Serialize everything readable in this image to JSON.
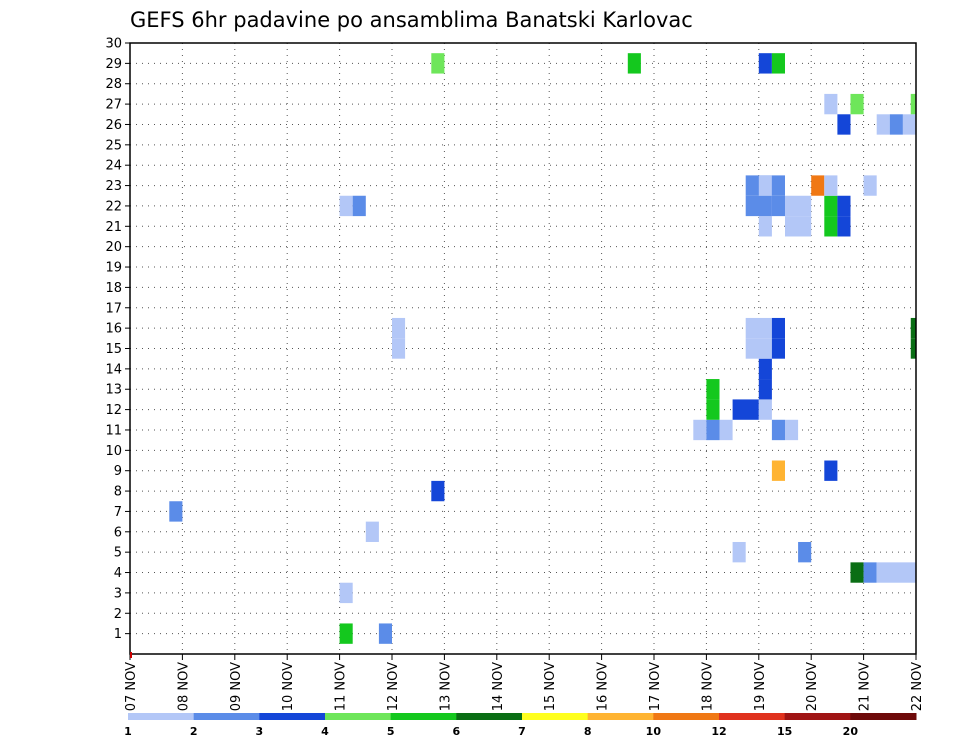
{
  "chart_data": {
    "type": "heatmap",
    "title": "GEFS 6hr padavine po ansamblima Banatski Karlovac",
    "x_tick_labels": [
      "07 NOV",
      "08 NOV",
      "09 NOV",
      "10 NOV",
      "11 NOV",
      "12 NOV",
      "13 NOV",
      "14 NOV",
      "15 NOV",
      "16 NOV",
      "17 NOV",
      "18 NOV",
      "19 NOV",
      "20 NOV",
      "21 NOV",
      "22 NOV"
    ],
    "x_range_days": [
      0,
      15
    ],
    "y_tick_labels": [
      "1",
      "2",
      "3",
      "4",
      "5",
      "6",
      "7",
      "8",
      "9",
      "10",
      "11",
      "12",
      "13",
      "14",
      "15",
      "16",
      "17",
      "18",
      "19",
      "20",
      "21",
      "22",
      "23",
      "24",
      "25",
      "26",
      "27",
      "28",
      "29",
      "30"
    ],
    "y_range": [
      0,
      30
    ],
    "grid": true,
    "legend_placement": "bottom",
    "colorbar": {
      "labels": [
        "1",
        "2",
        "3",
        "4",
        "5",
        "6",
        "7",
        "8",
        "10",
        "12",
        "15",
        "20"
      ],
      "colors": [
        "#b3c7f7",
        "#5b8ce8",
        "#1446d8",
        "#6ee65a",
        "#14c81e",
        "#0a6e14",
        "#ffff1e",
        "#ffb432",
        "#f07814",
        "#e0321e",
        "#a01414",
        "#6e0a0a"
      ]
    },
    "cells": [
      {
        "member": 1,
        "day": 4.0,
        "len": 0.25,
        "color": "#14c81e"
      },
      {
        "member": 1,
        "day": 4.75,
        "len": 0.25,
        "color": "#5b8ce8"
      },
      {
        "member": 3,
        "day": 4.0,
        "len": 0.25,
        "color": "#b3c7f7"
      },
      {
        "member": 4,
        "day": 13.75,
        "len": 0.25,
        "color": "#0a6e14"
      },
      {
        "member": 4,
        "day": 14.0,
        "len": 0.25,
        "color": "#5b8ce8"
      },
      {
        "member": 4,
        "day": 14.25,
        "len": 0.75,
        "color": "#b3c7f7"
      },
      {
        "member": 5,
        "day": 11.5,
        "len": 0.25,
        "color": "#b3c7f7"
      },
      {
        "member": 5,
        "day": 12.75,
        "len": 0.25,
        "color": "#5b8ce8"
      },
      {
        "member": 6,
        "day": 4.5,
        "len": 0.25,
        "color": "#b3c7f7"
      },
      {
        "member": 7,
        "day": 0.75,
        "len": 0.25,
        "color": "#5b8ce8"
      },
      {
        "member": 8,
        "day": 5.75,
        "len": 0.25,
        "color": "#1446d8"
      },
      {
        "member": 9,
        "day": 12.25,
        "len": 0.25,
        "color": "#ffb432"
      },
      {
        "member": 9,
        "day": 13.25,
        "len": 0.25,
        "color": "#1446d8"
      },
      {
        "member": 11,
        "day": 10.75,
        "len": 0.25,
        "color": "#b3c7f7"
      },
      {
        "member": 11,
        "day": 11.0,
        "len": 0.25,
        "color": "#5b8ce8"
      },
      {
        "member": 11,
        "day": 11.25,
        "len": 0.25,
        "color": "#b3c7f7"
      },
      {
        "member": 11,
        "day": 12.25,
        "len": 0.25,
        "color": "#5b8ce8"
      },
      {
        "member": 11,
        "day": 12.5,
        "len": 0.25,
        "color": "#b3c7f7"
      },
      {
        "member": 12,
        "day": 11.0,
        "len": 0.25,
        "color": "#14c81e"
      },
      {
        "member": 12,
        "day": 11.5,
        "len": 0.5,
        "color": "#1446d8"
      },
      {
        "member": 12,
        "day": 12.0,
        "len": 0.25,
        "color": "#b3c7f7"
      },
      {
        "member": 13,
        "day": 11.0,
        "len": 0.25,
        "color": "#14c81e"
      },
      {
        "member": 13,
        "day": 12.0,
        "len": 0.25,
        "color": "#1446d8"
      },
      {
        "member": 14,
        "day": 12.0,
        "len": 0.25,
        "color": "#1446d8"
      },
      {
        "member": 15,
        "day": 5.0,
        "len": 0.25,
        "color": "#b3c7f7"
      },
      {
        "member": 15,
        "day": 11.75,
        "len": 0.5,
        "color": "#b3c7f7"
      },
      {
        "member": 15,
        "day": 12.25,
        "len": 0.25,
        "color": "#1446d8"
      },
      {
        "member": 15,
        "day": 14.9,
        "len": 0.1,
        "color": "#0a6e14"
      },
      {
        "member": 16,
        "day": 5.0,
        "len": 0.25,
        "color": "#b3c7f7"
      },
      {
        "member": 16,
        "day": 11.75,
        "len": 0.5,
        "color": "#b3c7f7"
      },
      {
        "member": 16,
        "day": 12.25,
        "len": 0.25,
        "color": "#1446d8"
      },
      {
        "member": 16,
        "day": 14.9,
        "len": 0.1,
        "color": "#0a6e14"
      },
      {
        "member": 21,
        "day": 12.0,
        "len": 0.25,
        "color": "#b3c7f7"
      },
      {
        "member": 21,
        "day": 12.5,
        "len": 0.5,
        "color": "#b3c7f7"
      },
      {
        "member": 21,
        "day": 13.25,
        "len": 0.25,
        "color": "#14c81e"
      },
      {
        "member": 21,
        "day": 13.5,
        "len": 0.25,
        "color": "#1446d8"
      },
      {
        "member": 22,
        "day": 4.0,
        "len": 0.25,
        "color": "#b3c7f7"
      },
      {
        "member": 22,
        "day": 4.25,
        "len": 0.25,
        "color": "#5b8ce8"
      },
      {
        "member": 22,
        "day": 11.75,
        "len": 0.5,
        "color": "#5b8ce8"
      },
      {
        "member": 22,
        "day": 12.25,
        "len": 0.25,
        "color": "#5b8ce8"
      },
      {
        "member": 22,
        "day": 12.5,
        "len": 0.5,
        "color": "#b3c7f7"
      },
      {
        "member": 22,
        "day": 13.25,
        "len": 0.25,
        "color": "#14c81e"
      },
      {
        "member": 22,
        "day": 13.5,
        "len": 0.25,
        "color": "#1446d8"
      },
      {
        "member": 23,
        "day": 11.75,
        "len": 0.5,
        "color": "#5b8ce8"
      },
      {
        "member": 23,
        "day": 12.0,
        "len": 0.25,
        "color": "#b3c7f7"
      },
      {
        "member": 23,
        "day": 12.25,
        "len": 0.25,
        "color": "#5b8ce8"
      },
      {
        "member": 23,
        "day": 13.0,
        "len": 0.25,
        "color": "#f07814"
      },
      {
        "member": 23,
        "day": 13.25,
        "len": 0.25,
        "color": "#b3c7f7"
      },
      {
        "member": 23,
        "day": 14.0,
        "len": 0.25,
        "color": "#b3c7f7"
      },
      {
        "member": 26,
        "day": 13.5,
        "len": 0.25,
        "color": "#1446d8"
      },
      {
        "member": 26,
        "day": 14.25,
        "len": 0.25,
        "color": "#b3c7f7"
      },
      {
        "member": 26,
        "day": 14.5,
        "len": 0.25,
        "color": "#5b8ce8"
      },
      {
        "member": 26,
        "day": 14.75,
        "len": 0.25,
        "color": "#b3c7f7"
      },
      {
        "member": 27,
        "day": 13.25,
        "len": 0.25,
        "color": "#b3c7f7"
      },
      {
        "member": 27,
        "day": 13.75,
        "len": 0.25,
        "color": "#6ee65a"
      },
      {
        "member": 27,
        "day": 14.9,
        "len": 0.1,
        "color": "#6ee65a"
      },
      {
        "member": 29,
        "day": 5.75,
        "len": 0.25,
        "color": "#6ee65a"
      },
      {
        "member": 29,
        "day": 9.5,
        "len": 0.25,
        "color": "#14c81e"
      },
      {
        "member": 29,
        "day": 12.0,
        "len": 0.25,
        "color": "#1446d8"
      },
      {
        "member": 29,
        "day": 12.25,
        "len": 0.25,
        "color": "#14c81e"
      }
    ]
  }
}
